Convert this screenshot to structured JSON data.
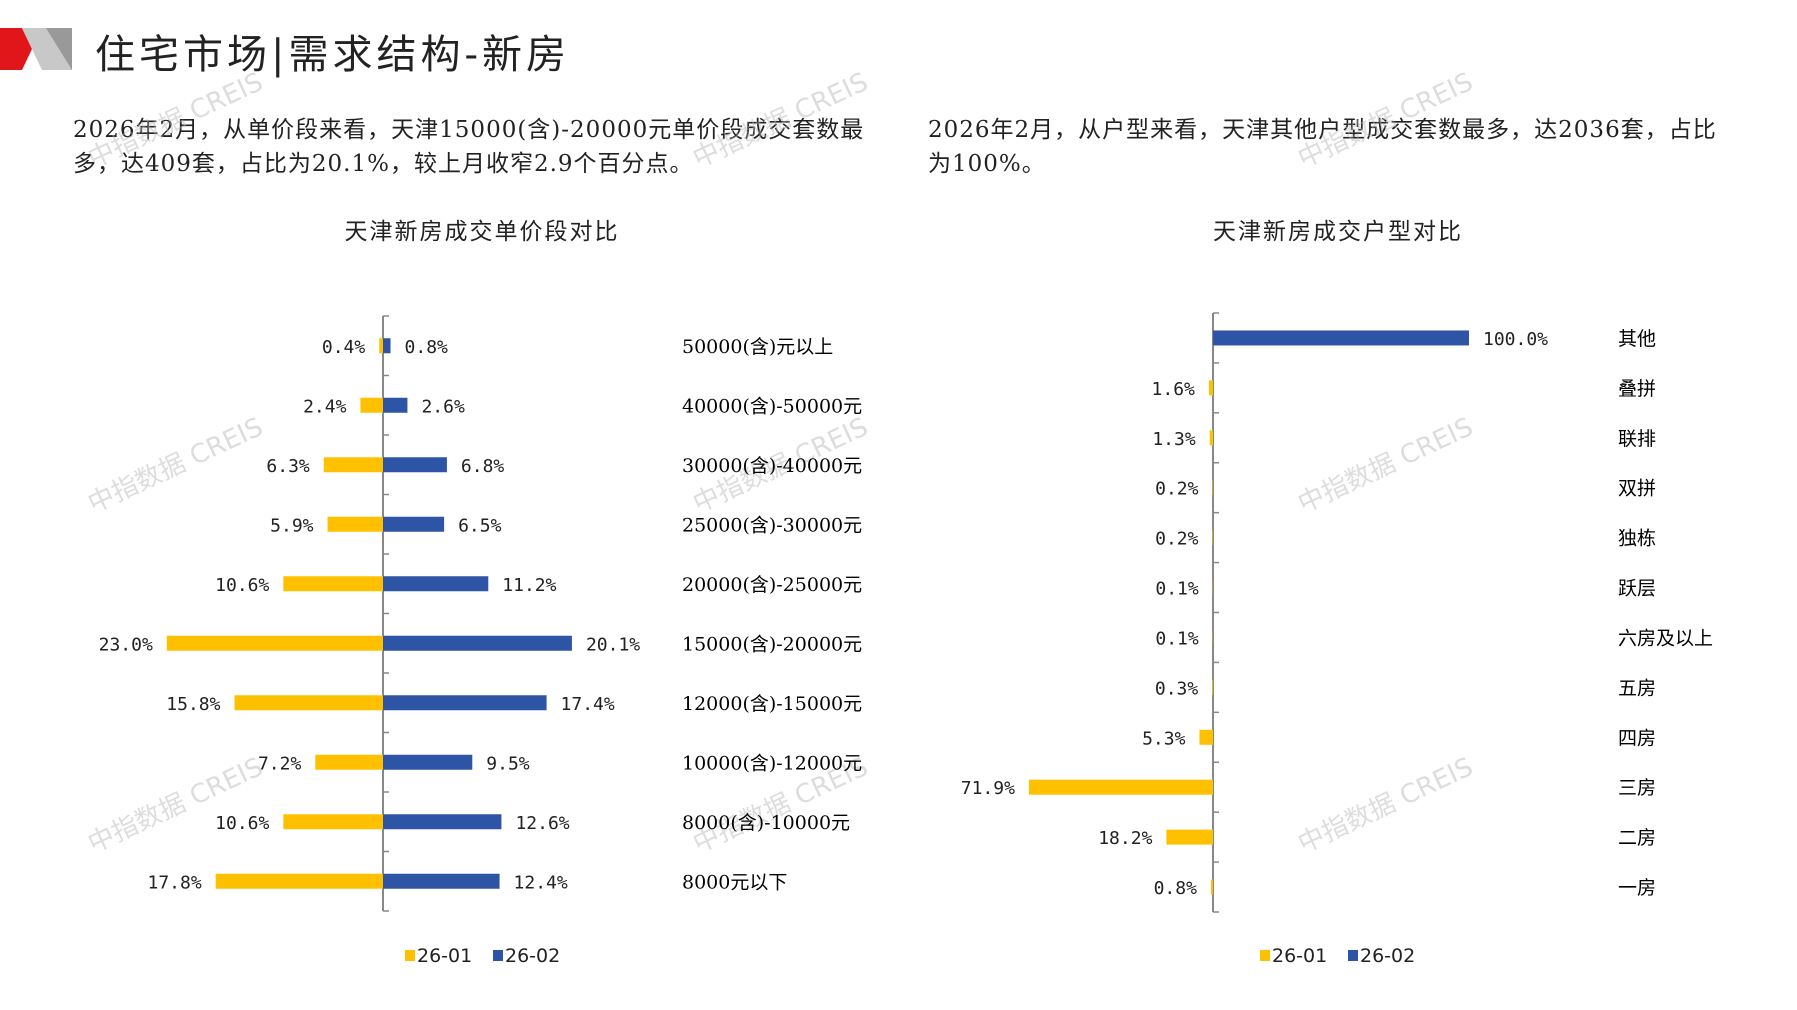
{
  "header": {
    "title": "住宅市场|需求结构-新房"
  },
  "left": {
    "paragraph": "2026年2月，从单价段来看，天津15000(含)-20000元单价段成交套数最多，达409套，占比为20.1%，较上月收窄2.9个百分点。"
  },
  "right": {
    "paragraph": "2026年2月，从户型来看，天津其他户型成交套数最多，达2036套，占比为100%。"
  },
  "watermark": "中指数据 CREIS",
  "colors": {
    "s1": "#FFC000",
    "s2": "#2E55A5",
    "accent": "#E0161B"
  },
  "chart_data": [
    {
      "type": "bar",
      "orientation": "horizontal-butterfly",
      "title": "天津新房成交单价段对比",
      "categories": [
        "50000(含)元以上",
        "40000(含)-50000元",
        "30000(含)-40000元",
        "25000(含)-30000元",
        "20000(含)-25000元",
        "15000(含)-20000元",
        "12000(含)-15000元",
        "10000(含)-12000元",
        "8000(含)-10000元",
        "8000元以下"
      ],
      "series": [
        {
          "name": "26-01",
          "values": [
            0.4,
            2.4,
            6.3,
            5.9,
            10.6,
            23.0,
            15.8,
            7.2,
            10.6,
            17.8
          ]
        },
        {
          "name": "26-02",
          "values": [
            0.8,
            2.6,
            6.8,
            6.5,
            11.2,
            20.1,
            17.4,
            9.5,
            12.6,
            12.4
          ]
        }
      ],
      "unit": "%",
      "legend": "bottom"
    },
    {
      "type": "bar",
      "orientation": "horizontal-butterfly",
      "title": "天津新房成交户型对比",
      "categories": [
        "其他",
        "叠拼",
        "联排",
        "双拼",
        "独栋",
        "跃层",
        "六房及以上",
        "五房",
        "四房",
        "三房",
        "二房",
        "一房"
      ],
      "series": [
        {
          "name": "26-01",
          "values": [
            null,
            1.6,
            1.3,
            0.2,
            0.2,
            0.1,
            0.1,
            0.3,
            5.3,
            71.9,
            18.2,
            0.8
          ]
        },
        {
          "name": "26-02",
          "values": [
            100.0,
            null,
            null,
            null,
            null,
            null,
            null,
            null,
            null,
            null,
            null,
            null
          ]
        }
      ],
      "unit": "%",
      "legend": "bottom"
    }
  ]
}
